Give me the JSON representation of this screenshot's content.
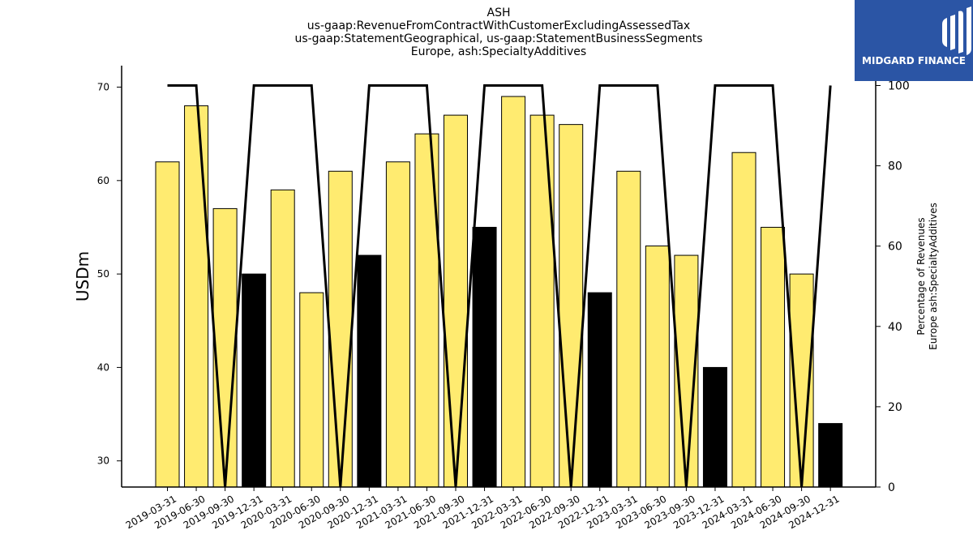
{
  "titles": {
    "line1": "ASH",
    "line2": "us-gaap:RevenueFromContractWithCustomerExcludingAssessedTax",
    "line3": "us-gaap:StatementGeographical, us-gaap:StatementBusinessSegments",
    "line4": "Europe, ash:SpecialtyAdditives"
  },
  "logo": {
    "text": "MIDGARD FINANCE"
  },
  "colors": {
    "bar_default": "#ffeb70",
    "bar_highlight": "#000000",
    "line": "#000000",
    "logo_bg": "#2b55a5"
  },
  "chart_data": {
    "type": "bar",
    "categories": [
      "2019-03-31",
      "2019-06-30",
      "2019-09-30",
      "2019-12-31",
      "2020-03-31",
      "2020-06-30",
      "2020-09-30",
      "2020-12-31",
      "2021-03-31",
      "2021-06-30",
      "2021-09-30",
      "2021-12-31",
      "2022-03-31",
      "2022-06-30",
      "2022-09-30",
      "2022-12-31",
      "2023-03-31",
      "2023-06-30",
      "2023-09-30",
      "2023-12-31",
      "2024-03-31",
      "2024-06-30",
      "2024-09-30",
      "2024-12-31"
    ],
    "values": [
      62,
      68,
      57,
      50,
      59,
      48,
      61,
      52,
      62,
      65,
      67,
      55,
      69,
      67,
      66,
      48,
      61,
      53,
      52,
      40,
      63,
      55,
      50,
      34
    ],
    "highlighted": [
      false,
      false,
      false,
      true,
      false,
      false,
      false,
      true,
      false,
      false,
      false,
      true,
      false,
      false,
      false,
      true,
      false,
      false,
      false,
      true,
      false,
      false,
      false,
      true
    ],
    "ylabel": "USDm",
    "ylim": [
      27.2,
      72.3
    ],
    "yticks": [
      30,
      40,
      50,
      60,
      70
    ],
    "secondary": {
      "type": "line",
      "values": [
        100,
        100,
        0,
        100,
        100,
        100,
        0,
        100,
        100,
        100,
        0,
        100,
        100,
        100,
        0,
        100,
        100,
        100,
        0,
        100,
        100,
        100,
        0,
        100
      ],
      "ylabel_line1": "Percentage of Revenues",
      "ylabel_line2": "Europe ash:SpecialtyAdditives",
      "ylim": [
        0,
        100
      ],
      "yticks": [
        0,
        20,
        40,
        60,
        80,
        100
      ]
    },
    "grid": false,
    "legend": "none"
  }
}
